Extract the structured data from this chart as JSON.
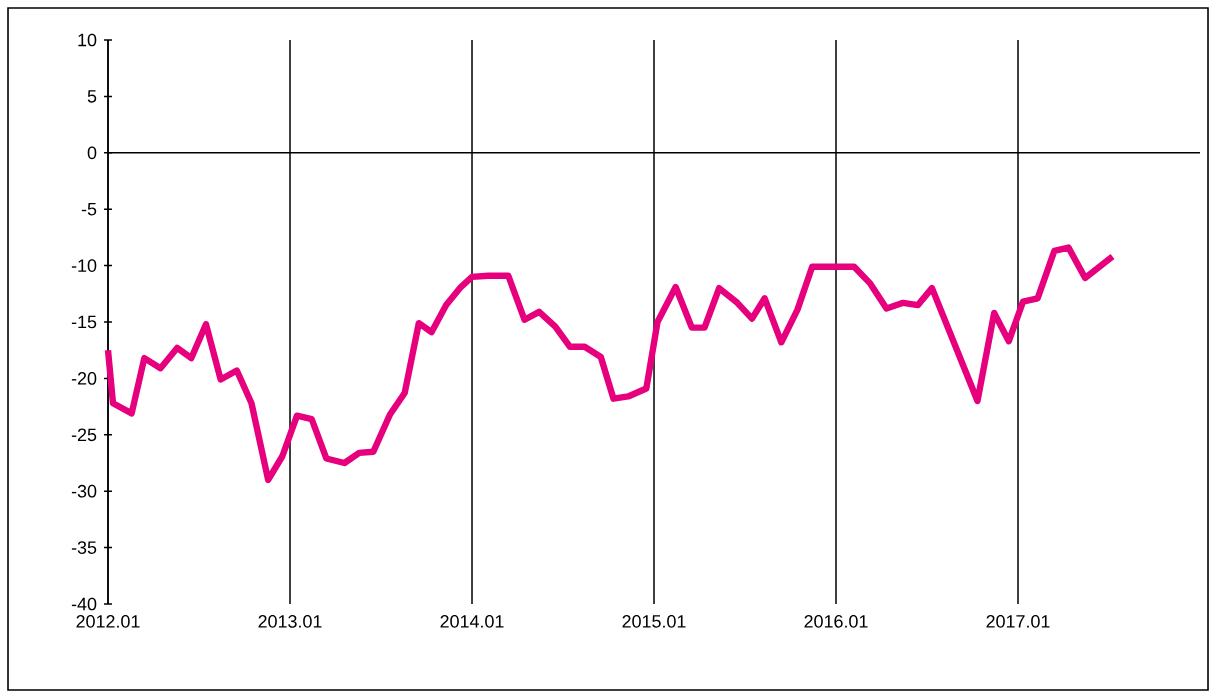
{
  "chart_data": {
    "type": "line",
    "xlim": [
      "2012-01-01",
      "2018-01-01"
    ],
    "ylim": [
      -40,
      10
    ],
    "xticks": [
      {
        "value": "2012-01",
        "label": "2012.01"
      },
      {
        "value": "2013-01",
        "label": "2013.01"
      },
      {
        "value": "2014-01",
        "label": "2014.01"
      },
      {
        "value": "2015-01",
        "label": "2015.01"
      },
      {
        "value": "2016-01",
        "label": "2016.01"
      },
      {
        "value": "2017-01",
        "label": "2017.01"
      }
    ],
    "yticks": [
      -40,
      -35,
      -30,
      -25,
      -20,
      -15,
      -10,
      -5,
      0,
      5,
      10
    ],
    "grid": "x",
    "marker": "none",
    "line_style": "solid",
    "ref_lines": [
      {
        "axis": "y",
        "value": 0,
        "color": "#000000"
      }
    ],
    "series": [
      {
        "color": "#e6007e",
        "x": [
          "2012-01-01",
          "2012-01-11",
          "2012-02-18",
          "2012-03-13",
          "2012-04-15",
          "2012-05-18",
          "2012-06-16",
          "2012-07-15",
          "2012-08-14",
          "2012-09-16",
          "2012-10-15",
          "2012-11-18",
          "2012-12-16",
          "2013-01-15",
          "2013-02-14",
          "2013-03-13",
          "2013-04-19",
          "2013-05-18",
          "2013-06-16",
          "2013-07-19",
          "2013-08-18",
          "2013-09-16",
          "2013-10-11",
          "2013-11-10",
          "2013-12-09",
          "2014-01-01",
          "2014-02-03",
          "2014-03-13",
          "2014-04-15",
          "2014-05-14",
          "2014-06-16",
          "2014-07-15",
          "2014-08-14",
          "2014-09-16",
          "2014-10-11",
          "2014-11-10",
          "2014-12-16",
          "2015-01-08",
          "2015-02-14",
          "2015-03-16",
          "2015-04-11",
          "2015-05-10",
          "2015-06-16",
          "2015-07-15",
          "2015-08-10",
          "2015-09-13",
          "2015-10-15",
          "2015-11-14",
          "2015-12-27",
          "2016-02-07",
          "2016-03-09",
          "2016-04-11",
          "2016-05-14",
          "2016-06-13",
          "2016-07-11",
          "2016-10-11",
          "2016-11-14",
          "2016-12-13",
          "2017-01-11",
          "2017-02-10",
          "2017-03-13",
          "2017-04-11",
          "2017-05-14",
          "2017-07-08"
        ],
        "values": [
          -17.5,
          -22.2,
          -23.1,
          -18.2,
          -19.1,
          -17.3,
          -18.2,
          -15.2,
          -20.1,
          -19.3,
          -22.2,
          -29.0,
          -26.9,
          -23.3,
          -23.6,
          -27.1,
          -27.5,
          -26.6,
          -26.5,
          -23.2,
          -21.3,
          -15.1,
          -15.9,
          -13.5,
          -11.9,
          -11.0,
          -10.9,
          -10.9,
          -14.8,
          -14.1,
          -15.4,
          -17.2,
          -17.2,
          -18.1,
          -21.8,
          -21.6,
          -20.9,
          -15.0,
          -11.9,
          -15.5,
          -15.5,
          -12.0,
          -13.3,
          -14.7,
          -12.9,
          -16.8,
          -13.9,
          -10.1,
          -10.1,
          -10.1,
          -11.6,
          -13.8,
          -13.3,
          -13.5,
          -12.0,
          -22.0,
          -14.2,
          -16.7,
          -13.2,
          -12.9,
          -8.7,
          -8.4,
          -11.1,
          -9.2
        ]
      }
    ]
  }
}
